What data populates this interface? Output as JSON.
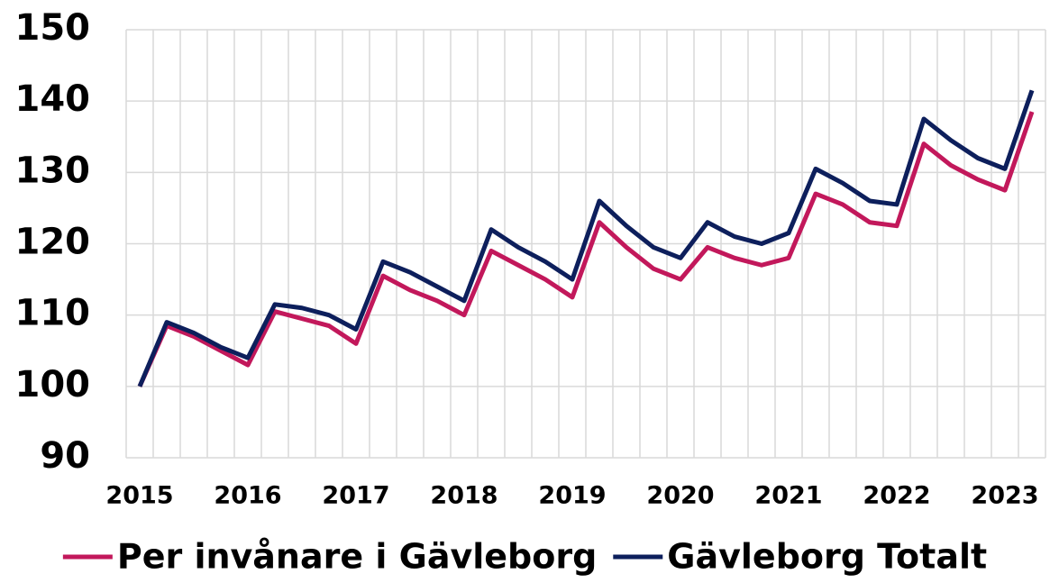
{
  "chart_data": {
    "type": "line",
    "categories": [
      "2015",
      null,
      null,
      null,
      "2016",
      null,
      null,
      null,
      "2017",
      null,
      null,
      null,
      "2018",
      null,
      null,
      null,
      "2019",
      null,
      null,
      null,
      "2020",
      null,
      null,
      null,
      "2021",
      null,
      null,
      null,
      "2022",
      null,
      null,
      null,
      "2023",
      null
    ],
    "series": [
      {
        "name": "Per invånare i Gävleborg",
        "color": "#c2185b",
        "values": [
          100,
          108.5,
          107,
          105,
          103,
          110.5,
          109.5,
          108.5,
          106,
          115.5,
          113.5,
          112,
          110,
          119,
          117,
          115,
          112.5,
          123,
          119.5,
          116.5,
          115,
          119.5,
          118,
          117,
          118,
          127,
          125.5,
          123,
          122.5,
          134,
          131,
          129,
          127.5,
          138.5
        ]
      },
      {
        "name": "Gävleborg Totalt",
        "color": "#0d1f5c",
        "values": [
          100,
          109,
          107.5,
          105.5,
          104,
          111.5,
          111,
          110,
          108,
          117.5,
          116,
          114,
          112,
          122,
          119.5,
          117.5,
          115,
          126,
          122.5,
          119.5,
          118,
          123,
          121,
          120,
          121.5,
          130.5,
          128.5,
          126,
          125.5,
          137.5,
          134.5,
          132,
          130.5,
          141.5
        ]
      }
    ],
    "ylim": [
      90,
      150
    ],
    "yticks": [
      90,
      100,
      110,
      120,
      130,
      140,
      150
    ],
    "grid": true,
    "legend": "bottom"
  }
}
